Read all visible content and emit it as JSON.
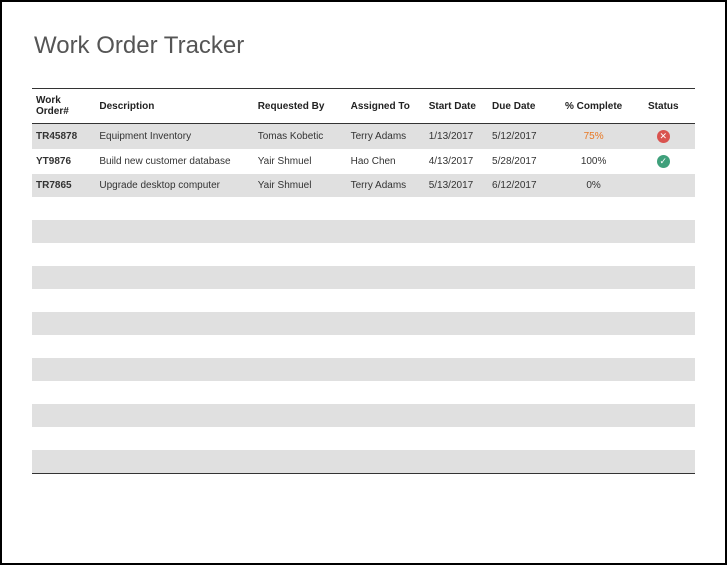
{
  "title": "Work Order Tracker",
  "table": {
    "columns": [
      {
        "key": "wo",
        "label": "Work Order#",
        "class": "col-wo"
      },
      {
        "key": "desc",
        "label": "Description",
        "class": "col-desc"
      },
      {
        "key": "req",
        "label": "Requested By",
        "class": "col-req"
      },
      {
        "key": "assign",
        "label": "Assigned To",
        "class": "col-assign"
      },
      {
        "key": "start",
        "label": "Start Date",
        "class": "col-start"
      },
      {
        "key": "due",
        "label": "Due Date",
        "class": "col-due"
      },
      {
        "key": "pct",
        "label": "% Complete",
        "class": "col-pct"
      },
      {
        "key": "status",
        "label": "Status",
        "class": "col-status"
      }
    ],
    "rows": [
      {
        "wo": "TR45878",
        "desc": "Equipment Inventory",
        "req": "Tomas Kobetic",
        "assign": "Terry Adams",
        "start": "1/13/2017",
        "due": "5/12/2017",
        "pct": "75%",
        "pct_warn": true,
        "status": "red"
      },
      {
        "wo": "YT9876",
        "desc": "Build new customer database",
        "req": "Yair Shmuel",
        "assign": "Hao Chen",
        "start": "4/13/2017",
        "due": "5/28/2017",
        "pct": "100%",
        "pct_warn": false,
        "status": "green"
      },
      {
        "wo": "TR7865",
        "desc": "Upgrade desktop computer",
        "req": "Yair Shmuel",
        "assign": "Terry Adams",
        "start": "5/13/2017",
        "due": "6/12/2017",
        "pct": "0%",
        "pct_warn": false,
        "status": ""
      }
    ],
    "empty_rows": 12
  },
  "colors": {
    "row_stripe": "#e0e0e0",
    "bg": "#ffffff",
    "text": "#333333",
    "title": "#555555",
    "border": "#333333",
    "warn": "#e87722",
    "red": "#d9534f",
    "green": "#3fa07b"
  }
}
